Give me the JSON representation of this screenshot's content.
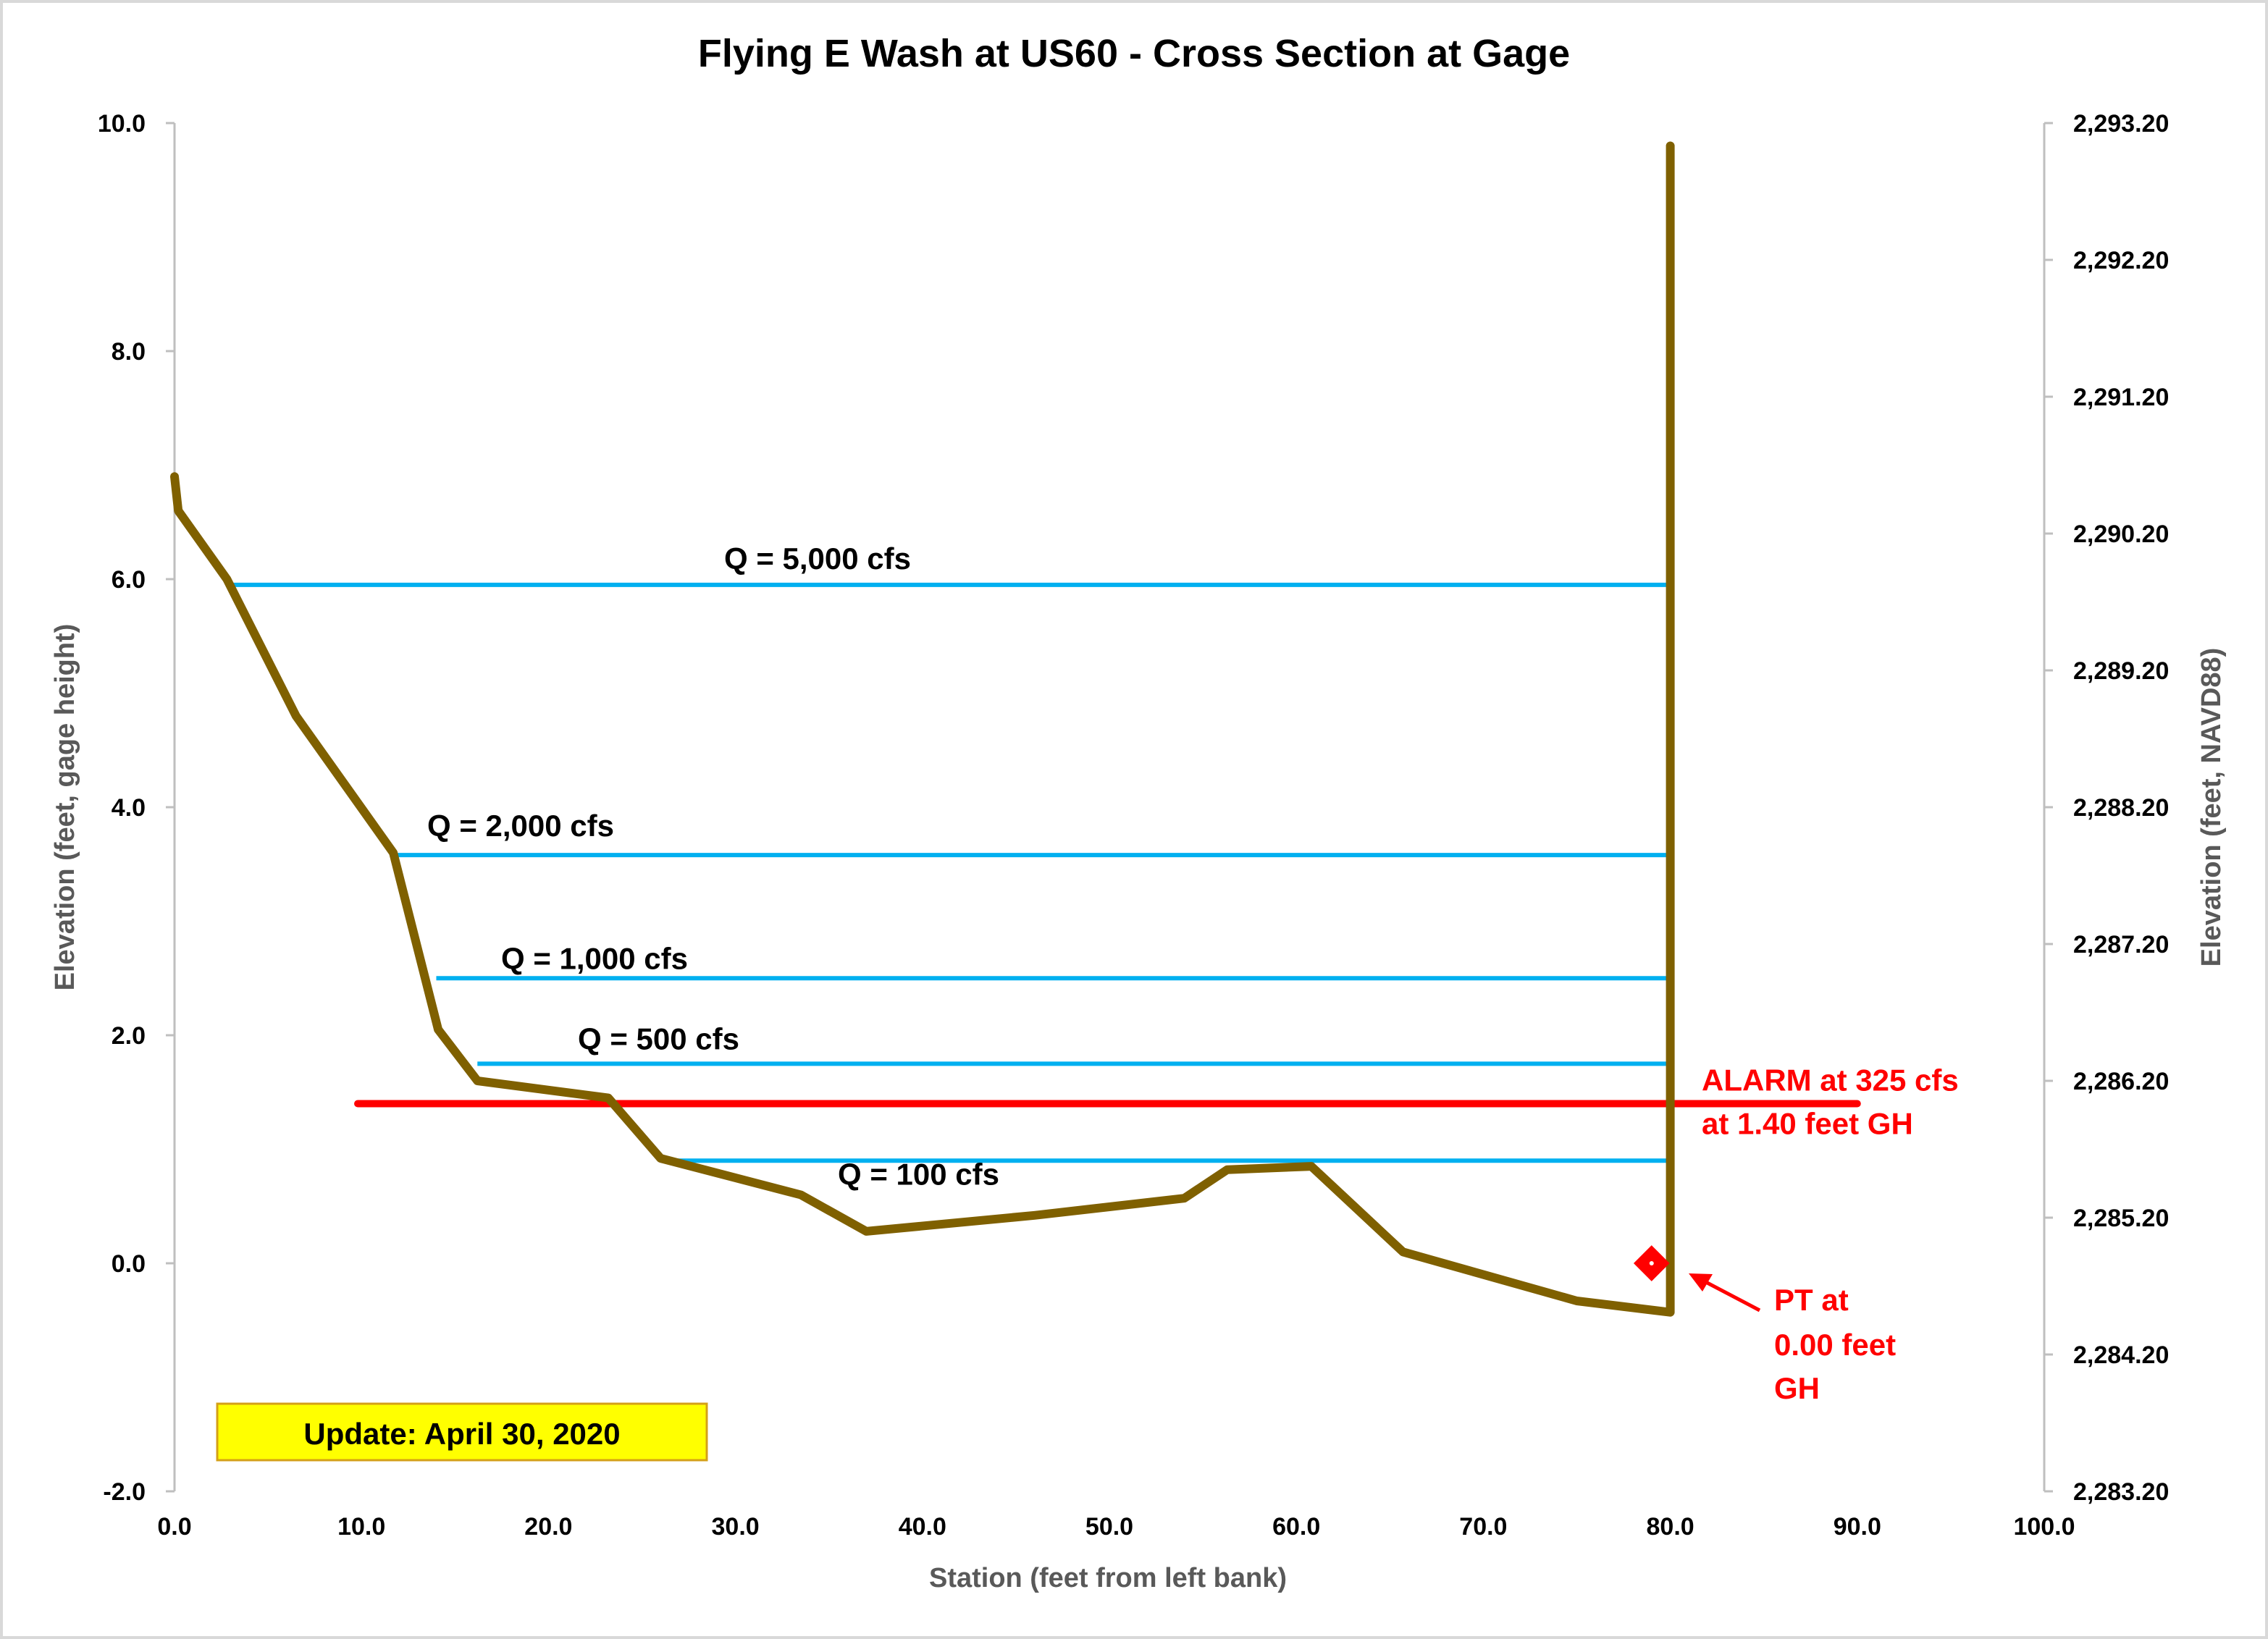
{
  "chart_data": {
    "type": "line",
    "title": "Flying E Wash at US60 - Cross Section at Gage",
    "xlabel": "Station (feet from left bank)",
    "ylabel": "Elevation (feet, gage height)",
    "y2label": "Elevation (feet, NAVD88)",
    "xlim": [
      0,
      100
    ],
    "ylim": [
      -2,
      10
    ],
    "y2lim": [
      2283.2,
      2293.2
    ],
    "x_ticks": [
      "0.0",
      "10.0",
      "20.0",
      "30.0",
      "40.0",
      "50.0",
      "60.0",
      "70.0",
      "80.0",
      "90.0",
      "100.0"
    ],
    "y_ticks": [
      "-2.0",
      "0.0",
      "2.0",
      "4.0",
      "6.0",
      "8.0",
      "10.0"
    ],
    "y2_ticks": [
      "2,283.20",
      "2,284.20",
      "2,285.20",
      "2,286.20",
      "2,287.20",
      "2,288.20",
      "2,289.20",
      "2,290.20",
      "2,291.20",
      "2,292.20",
      "2,293.20"
    ],
    "grid": false,
    "colors": {
      "cross_section": "#7f6000",
      "discharge_lines": "#00b0f0",
      "alarm": "#ff0000",
      "pt_marker": "#ff0000",
      "update_box": "#ffff00"
    },
    "series": [
      {
        "x": [
          0.0,
          0.2,
          2.8,
          6.5,
          11.7,
          14.1,
          16.2,
          23.2,
          26.0,
          33.5,
          37.0,
          46.0,
          54.0,
          56.3,
          60.8,
          65.7,
          75.0,
          80.0,
          80.0
        ],
        "y": [
          6.9,
          6.6,
          6.0,
          4.8,
          3.6,
          2.05,
          1.6,
          1.45,
          0.92,
          0.6,
          0.28,
          0.42,
          0.57,
          0.82,
          0.85,
          0.1,
          -0.33,
          -0.43,
          9.8
        ]
      }
    ],
    "discharge_levels": [
      {
        "label": "Q = 5,000 cfs",
        "y": 5.95,
        "x_start": 3.0,
        "x_end": 80.0
      },
      {
        "label": "Q = 2,000 cfs",
        "y": 3.58,
        "x_start": 11.8,
        "x_end": 80.0
      },
      {
        "label": "Q = 1,000 cfs",
        "y": 2.5,
        "x_start": 14.0,
        "x_end": 80.0
      },
      {
        "label": "Q = 500 cfs",
        "y": 1.75,
        "x_start": 16.2,
        "x_end": 80.0
      },
      {
        "label": "Q = 100 cfs",
        "y": 0.9,
        "x_start": 26.0,
        "x_end": 80.0
      }
    ],
    "alarm": {
      "label_line1": "ALARM at 325 cfs",
      "label_line2": "at 1.40 feet GH",
      "y": 1.4,
      "x_start": 9.8,
      "x_end": 90.0
    },
    "pt_marker": {
      "x": 79.0,
      "y": 0.0,
      "label_line1": "PT at",
      "label_line2": "0.00 feet",
      "label_line3": "GH"
    },
    "update_note": "Update: April 30, 2020"
  }
}
